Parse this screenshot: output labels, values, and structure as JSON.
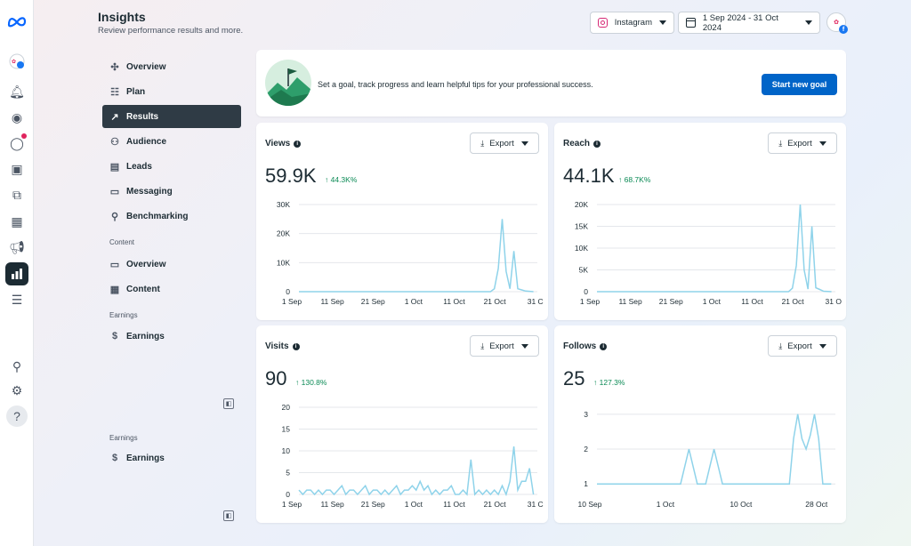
{
  "header": {
    "title": "Insights",
    "subtitle": "Review performance results and more.",
    "platform": "Instagram",
    "date_range": "1 Sep 2024 - 31 Oct 2024"
  },
  "nav": {
    "items": [
      {
        "label": "Overview",
        "icon": "overview-icon"
      },
      {
        "label": "Plan",
        "icon": "plan-icon"
      },
      {
        "label": "Results",
        "icon": "results-icon",
        "active": true
      },
      {
        "label": "Audience",
        "icon": "audience-icon"
      },
      {
        "label": "Leads",
        "icon": "leads-icon"
      },
      {
        "label": "Messaging",
        "icon": "messaging-icon"
      },
      {
        "label": "Benchmarking",
        "icon": "benchmarking-icon"
      }
    ],
    "content_section": "Content",
    "content_items": [
      {
        "label": "Overview",
        "icon": "overview-icon"
      },
      {
        "label": "Content",
        "icon": "content-table-icon"
      }
    ],
    "earnings_section": "Earnings",
    "earnings_label": "Earnings",
    "earnings_section_2": "Earnings",
    "earnings_label_2": "Earnings"
  },
  "goal": {
    "text": "Set a goal, track progress and learn helpful tips for your professional success.",
    "button": "Start new goal"
  },
  "export_label": "Export",
  "colors": {
    "line": "#8fd3ea",
    "accent": "#0064c8",
    "positive": "#0b8a55"
  },
  "chart_data": [
    {
      "type": "line",
      "title": "Views",
      "value": "59.9K",
      "delta": "↑ 44.3K%",
      "x_ticks": [
        "1 Sep",
        "11 Sep",
        "21 Sep",
        "1 Oct",
        "11 Oct",
        "21 Oct",
        "31 C"
      ],
      "y_ticks": [
        "30K",
        "20K",
        "10K",
        "0"
      ],
      "ylim": [
        0,
        30000
      ],
      "series": [
        {
          "x": [
            0,
            49,
            50,
            51,
            52,
            53,
            54,
            55,
            56,
            57,
            58,
            60
          ],
          "y": [
            0,
            0,
            1000,
            8000,
            25000,
            7000,
            1000,
            14000,
            1000,
            600,
            200,
            0
          ]
        }
      ],
      "xlim": [
        0,
        61
      ]
    },
    {
      "type": "line",
      "title": "Reach",
      "value": "44.1K",
      "delta": "↑ 68.7K%",
      "x_ticks": [
        "1 Sep",
        "11 Sep",
        "21 Sep",
        "1 Oct",
        "11 Oct",
        "21 Oct",
        "31 O"
      ],
      "y_ticks": [
        "20K",
        "15K",
        "10K",
        "5K",
        "0"
      ],
      "ylim": [
        0,
        20000
      ],
      "series": [
        {
          "x": [
            0,
            49,
            50,
            51,
            52,
            53,
            54,
            55,
            56,
            57,
            58,
            60
          ],
          "y": [
            0,
            0,
            800,
            6000,
            20000,
            5000,
            600,
            15000,
            900,
            500,
            100,
            0
          ]
        }
      ],
      "xlim": [
        0,
        61
      ]
    },
    {
      "type": "line",
      "title": "Visits",
      "value": "90",
      "delta": "↑ 130.8%",
      "x_ticks": [
        "1 Sep",
        "11 Sep",
        "21 Sep",
        "1 Oct",
        "11 Oct",
        "21 Oct",
        "31 C"
      ],
      "y_ticks": [
        "20",
        "15",
        "10",
        "5",
        "0"
      ],
      "ylim": [
        0,
        20
      ],
      "series": [
        {
          "x": [
            0,
            1,
            2,
            3,
            4,
            5,
            6,
            7,
            8,
            9,
            10,
            11,
            12,
            13,
            14,
            15,
            16,
            17,
            18,
            19,
            20,
            21,
            22,
            23,
            24,
            25,
            26,
            27,
            28,
            29,
            30,
            31,
            32,
            33,
            34,
            35,
            36,
            37,
            38,
            39,
            40,
            41,
            42,
            43,
            44,
            45,
            46,
            47,
            48,
            49,
            50,
            51,
            52,
            53,
            54,
            55,
            56,
            57,
            58,
            59,
            60
          ],
          "y": [
            1,
            0,
            1,
            1,
            0,
            1,
            0,
            1,
            1,
            0,
            1,
            2,
            0,
            1,
            1,
            0,
            1,
            2,
            0,
            1,
            1,
            0,
            1,
            0,
            1,
            2,
            0,
            1,
            1,
            2,
            1,
            3,
            1,
            2,
            0,
            1,
            0,
            1,
            1,
            2,
            0,
            0,
            1,
            0,
            8,
            0,
            1,
            0,
            1,
            0,
            1,
            0,
            2,
            0,
            3,
            11,
            1,
            3,
            3,
            6,
            0
          ]
        }
      ],
      "xlim": [
        0,
        61
      ]
    },
    {
      "type": "line",
      "title": "Follows",
      "value": "25",
      "delta": "↑ 127.3%",
      "x_ticks": [
        "10 Sep",
        "1 Oct",
        "10 Oct",
        "28 Oct"
      ],
      "y_ticks": [
        "3",
        "2",
        "1"
      ],
      "ylim": [
        0.7,
        3.2
      ],
      "series": [
        {
          "x": [
            10,
            12,
            14,
            16,
            18,
            20,
            22,
            24,
            26,
            28,
            30,
            32,
            34,
            36,
            38,
            40,
            42,
            44,
            46,
            48,
            50,
            52,
            54,
            56,
            57,
            58,
            59,
            60,
            61,
            62,
            63,
            64,
            66
          ],
          "y": [
            1,
            1,
            1,
            1,
            1,
            1,
            1,
            1,
            1,
            1,
            1,
            2,
            1,
            1,
            2,
            1,
            1,
            1,
            1,
            1,
            1,
            1,
            1,
            1,
            2.3,
            3,
            2.3,
            2,
            2.4,
            3,
            2.3,
            1,
            1
          ]
        }
      ],
      "xlim": [
        10,
        67
      ]
    }
  ]
}
